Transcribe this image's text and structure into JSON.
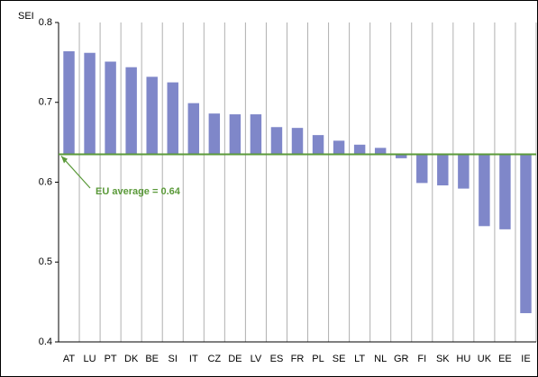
{
  "chart_data": {
    "type": "bar",
    "y_label": "SEI",
    "annotation": "EU average = 0.64",
    "baseline": 0.635,
    "categories": [
      "AT",
      "LU",
      "PT",
      "DK",
      "BE",
      "SI",
      "IT",
      "CZ",
      "DE",
      "LV",
      "ES",
      "FR",
      "PL",
      "SE",
      "LT",
      "NL",
      "GR",
      "FI",
      "SK",
      "HU",
      "UK",
      "EE",
      "IE"
    ],
    "values": [
      0.764,
      0.762,
      0.751,
      0.744,
      0.732,
      0.725,
      0.699,
      0.686,
      0.685,
      0.685,
      0.669,
      0.668,
      0.659,
      0.652,
      0.647,
      0.643,
      0.63,
      0.599,
      0.596,
      0.592,
      0.545,
      0.541,
      0.436
    ],
    "color": "#7f87c9",
    "baseline_color": "#5b9a3a",
    "ylim": [
      0.4,
      0.8
    ],
    "yticks": [
      0.4,
      0.5,
      0.6,
      0.7,
      0.8
    ],
    "grid": true
  }
}
